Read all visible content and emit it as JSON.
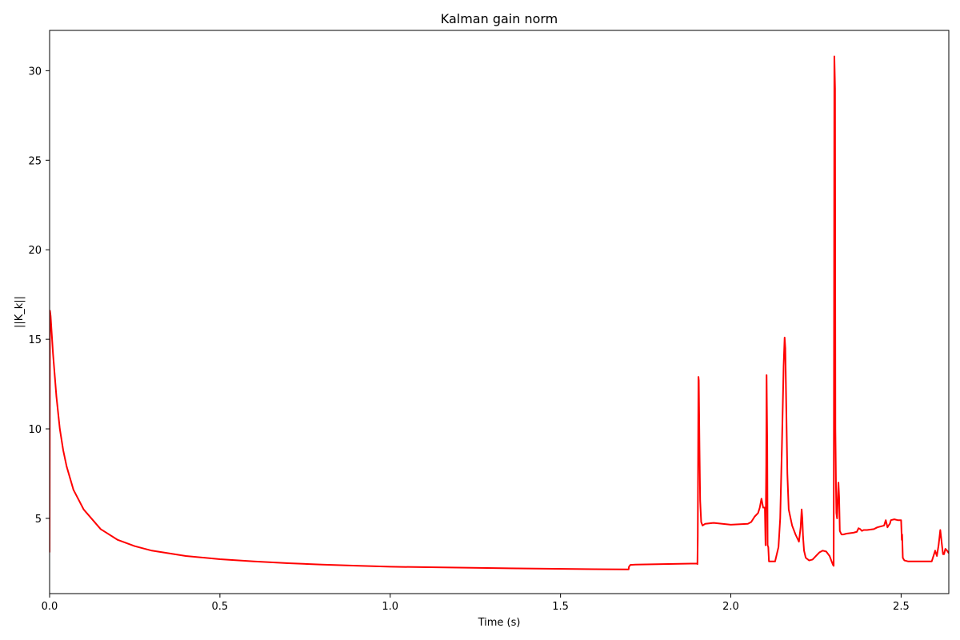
{
  "chart_data": {
    "type": "line",
    "title": "Kalman gain norm",
    "xlabel": "Time (s)",
    "ylabel": "||K_k||",
    "xlim": [
      0,
      2.64
    ],
    "ylim": [
      0.8,
      32.25
    ],
    "x_ticks": [
      0,
      0.5,
      1.0,
      1.5,
      2.0,
      2.5
    ],
    "x_tick_labels": [
      "0.0",
      "0.5",
      "1.0",
      "1.5",
      "2.0",
      "2.5"
    ],
    "y_ticks": [
      5,
      10,
      15,
      20,
      25,
      30
    ],
    "y_tick_labels": [
      "5",
      "10",
      "15",
      "20",
      "25",
      "30"
    ],
    "grid": false,
    "series": [
      {
        "color": "#ff0000",
        "x": [
          0.0,
          0.001,
          0.003,
          0.006,
          0.01,
          0.02,
          0.03,
          0.04,
          0.05,
          0.07,
          0.1,
          0.15,
          0.2,
          0.25,
          0.3,
          0.4,
          0.5,
          0.6,
          0.7,
          0.8,
          0.9,
          1.0,
          1.2,
          1.4,
          1.6,
          1.7,
          1.701,
          1.705,
          1.72,
          1.8,
          1.9,
          1.902,
          1.903,
          1.905,
          1.906,
          1.908,
          1.91,
          1.913,
          1.917,
          1.925,
          1.95,
          2.0,
          2.05,
          2.06,
          2.07,
          2.08,
          2.085,
          2.09,
          2.095,
          2.1,
          2.102,
          2.104,
          2.105,
          2.107,
          2.108,
          2.11,
          2.112,
          2.115,
          2.13,
          2.14,
          2.145,
          2.15,
          2.155,
          2.158,
          2.16,
          2.163,
          2.166,
          2.17,
          2.18,
          2.19,
          2.2,
          2.205,
          2.208,
          2.21,
          2.212,
          2.215,
          2.22,
          2.23,
          2.24,
          2.25,
          2.26,
          2.27,
          2.28,
          2.29,
          2.3,
          2.302,
          2.303,
          2.304,
          2.306,
          2.307,
          2.309,
          2.31,
          2.312,
          2.314,
          2.316,
          2.318,
          2.32,
          2.325,
          2.33,
          2.34,
          2.36,
          2.37,
          2.375,
          2.38,
          2.385,
          2.39,
          2.4,
          2.42,
          2.43,
          2.44,
          2.45,
          2.455,
          2.46,
          2.463,
          2.467,
          2.47,
          2.48,
          2.49,
          2.5,
          2.502,
          2.503,
          2.505,
          2.508,
          2.51,
          2.52,
          2.53,
          2.55,
          2.57,
          2.59,
          2.6,
          2.605,
          2.61,
          2.615,
          2.62,
          2.623,
          2.626,
          2.63,
          2.635,
          2.64
        ],
        "y": [
          3.1,
          16.6,
          16.3,
          15.4,
          14.2,
          11.8,
          10.0,
          8.8,
          7.9,
          6.6,
          5.5,
          4.4,
          3.8,
          3.45,
          3.2,
          2.9,
          2.72,
          2.6,
          2.5,
          2.42,
          2.36,
          2.3,
          2.25,
          2.2,
          2.16,
          2.15,
          2.3,
          2.4,
          2.42,
          2.45,
          2.48,
          2.45,
          4.0,
          12.9,
          12.7,
          9.0,
          6.0,
          4.8,
          4.6,
          4.7,
          4.75,
          4.65,
          4.7,
          4.8,
          5.1,
          5.3,
          5.6,
          6.1,
          5.6,
          5.6,
          3.5,
          8.0,
          13.0,
          9.0,
          3.5,
          3.4,
          2.6,
          2.6,
          2.6,
          3.4,
          5.0,
          9.0,
          13.5,
          15.1,
          14.5,
          11.0,
          7.5,
          5.5,
          4.6,
          4.1,
          3.7,
          4.5,
          5.5,
          5.0,
          4.0,
          3.2,
          2.8,
          2.65,
          2.7,
          2.9,
          3.1,
          3.2,
          3.15,
          2.9,
          2.4,
          2.35,
          15.0,
          30.8,
          29.0,
          10.0,
          6.5,
          5.3,
          5.0,
          6.0,
          7.0,
          6.2,
          4.3,
          4.1,
          4.1,
          4.15,
          4.2,
          4.25,
          4.45,
          4.4,
          4.3,
          4.35,
          4.35,
          4.4,
          4.5,
          4.55,
          4.6,
          4.9,
          4.5,
          4.6,
          4.7,
          4.9,
          4.95,
          4.9,
          4.9,
          3.8,
          4.1,
          2.8,
          2.7,
          2.65,
          2.6,
          2.6,
          2.6,
          2.6,
          2.6,
          3.2,
          2.9,
          3.5,
          4.35,
          3.5,
          3.0,
          3.0,
          3.3,
          3.2,
          3.05
        ]
      }
    ]
  }
}
